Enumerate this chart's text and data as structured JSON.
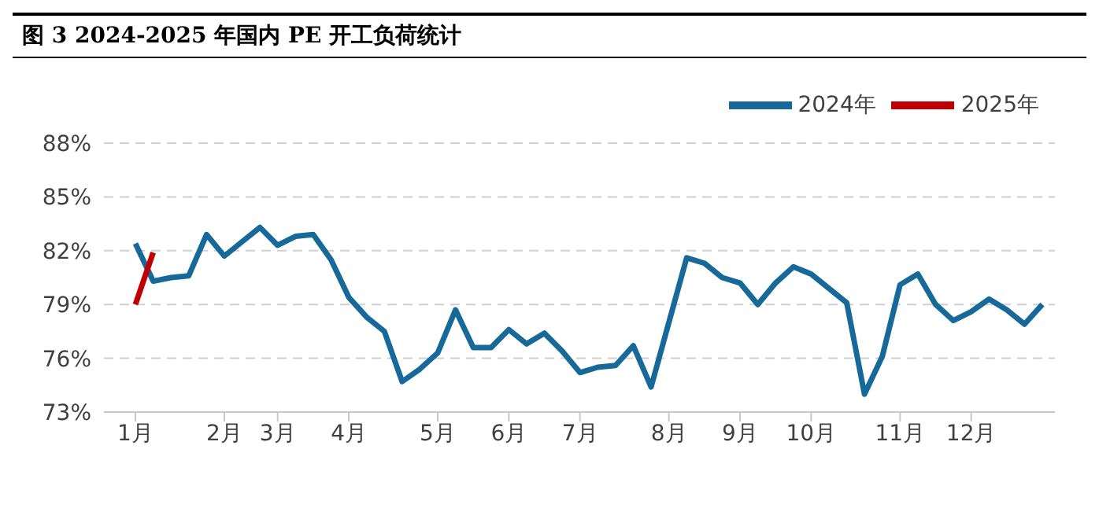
{
  "chart_data": {
    "type": "line",
    "title": "图 3 2024-2025 年国内 PE 开工负荷统计",
    "categories": [
      "1月",
      null,
      null,
      null,
      null,
      "2月",
      null,
      null,
      "3月",
      null,
      null,
      null,
      "4月",
      null,
      null,
      null,
      null,
      "5月",
      null,
      null,
      null,
      "6月",
      null,
      null,
      null,
      "7月",
      null,
      null,
      null,
      null,
      "8月",
      null,
      null,
      null,
      "9月",
      null,
      null,
      null,
      "10月",
      null,
      null,
      null,
      null,
      "11月",
      null,
      null,
      null,
      "12月",
      null,
      null,
      null,
      null
    ],
    "series": [
      {
        "name": "2024年",
        "color": "#17699a",
        "values": [
          82.4,
          80.3,
          80.5,
          80.6,
          82.9,
          81.7,
          82.5,
          83.3,
          82.3,
          82.8,
          82.9,
          81.5,
          79.4,
          78.3,
          77.5,
          74.7,
          75.4,
          76.3,
          78.7,
          76.6,
          76.6,
          77.6,
          76.8,
          77.4,
          76.4,
          75.2,
          75.5,
          75.6,
          76.7,
          74.4,
          78.0,
          81.6,
          81.3,
          80.5,
          80.2,
          79.0,
          80.2,
          81.1,
          80.7,
          79.9,
          79.1,
          74.0,
          76.1,
          80.1,
          80.7,
          79.0,
          78.1,
          78.6,
          79.3,
          78.7,
          77.9,
          79.0
        ]
      },
      {
        "name": "2025年",
        "color": "#c00000",
        "values": [
          79.0,
          81.9,
          null,
          null,
          null,
          null,
          null,
          null,
          null,
          null,
          null,
          null,
          null,
          null,
          null,
          null,
          null,
          null,
          null,
          null,
          null,
          null,
          null,
          null,
          null,
          null,
          null,
          null,
          null,
          null,
          null,
          null,
          null,
          null,
          null,
          null,
          null,
          null,
          null,
          null,
          null,
          null,
          null,
          null,
          null,
          null,
          null,
          null,
          null,
          null,
          null,
          null
        ]
      }
    ],
    "ylim": [
      73,
      88
    ],
    "yticks": [
      {
        "value": 73,
        "label": "73%"
      },
      {
        "value": 76,
        "label": "76%"
      },
      {
        "value": 79,
        "label": "79%"
      },
      {
        "value": 82,
        "label": "82%"
      },
      {
        "value": 85,
        "label": "85%"
      },
      {
        "value": 88,
        "label": "88%"
      }
    ],
    "grid": "y",
    "legend": "top right",
    "marker": "none",
    "line_style": "solid"
  }
}
